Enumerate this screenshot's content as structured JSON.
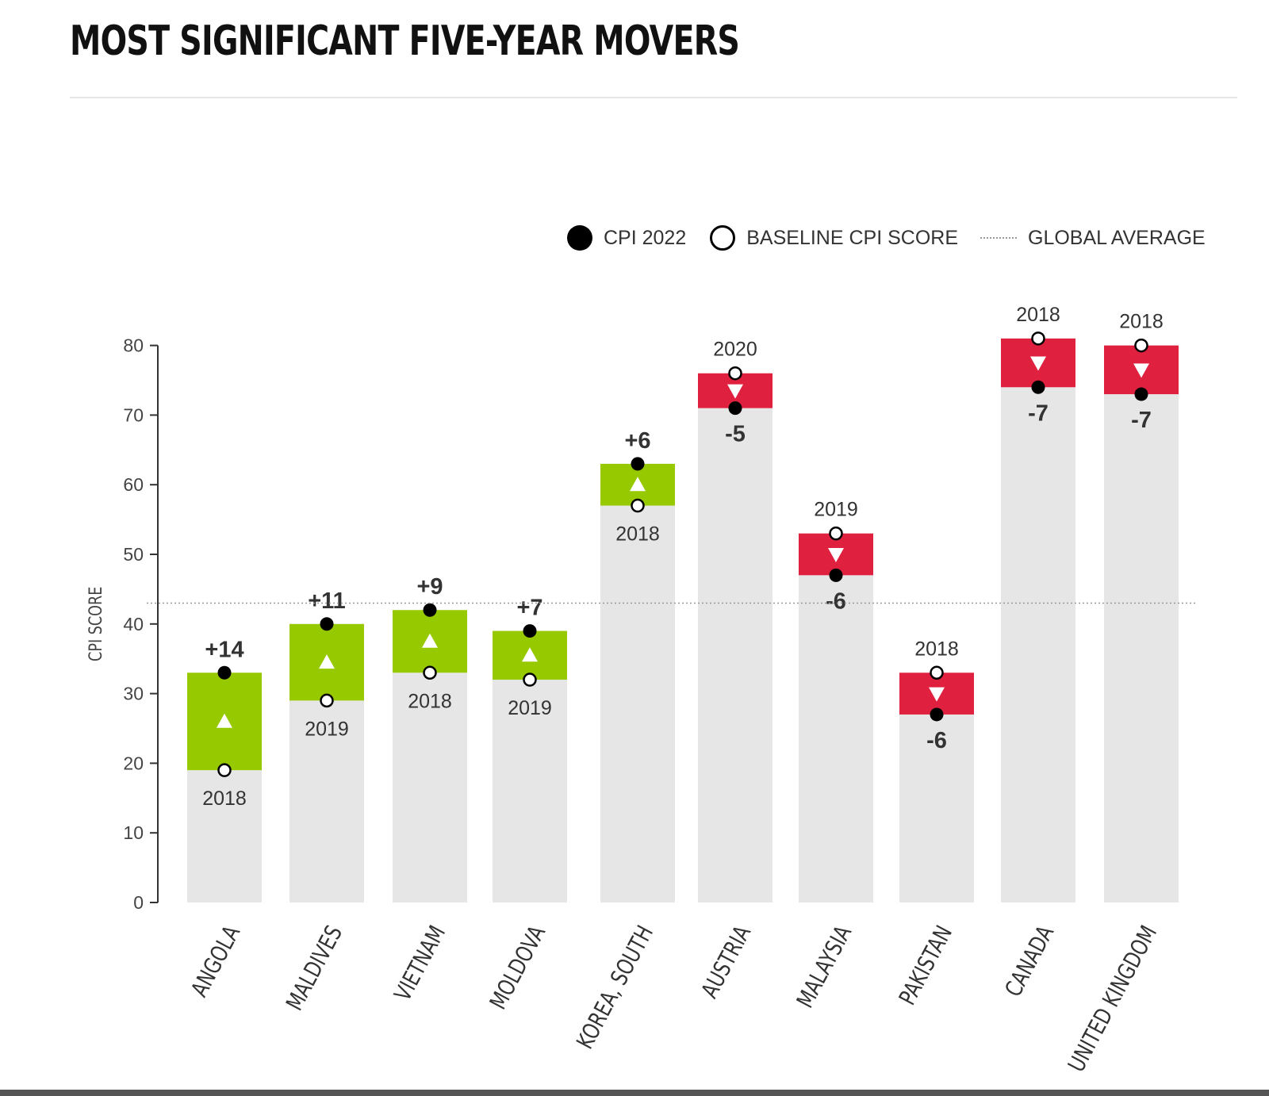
{
  "page": {
    "title": "MOST SIGNIFICANT FIVE-YEAR MOVERS"
  },
  "legend": {
    "cpi_2022_label": "CPI 2022",
    "baseline_label": "BASELINE CPI SCORE",
    "global_average_label": "GLOBAL AVERAGE"
  },
  "colors": {
    "increase": "#97c900",
    "decrease": "#e0203f",
    "bar_background": "#e6e6e6",
    "text": "#333333"
  },
  "chart_data": {
    "type": "bar",
    "title": "MOST SIGNIFICANT FIVE-YEAR MOVERS",
    "ylabel": "CPI SCORE",
    "xlabel": "",
    "ylim": [
      0,
      80
    ],
    "yticks": [
      0,
      10,
      20,
      30,
      40,
      50,
      60,
      70,
      80
    ],
    "global_average": 43,
    "categories": [
      "ANGOLA",
      "MALDIVES",
      "VIETNAM",
      "MOLDOVA",
      "KOREA, SOUTH",
      "AUSTRIA",
      "MALAYSIA",
      "PAKISTAN",
      "CANADA",
      "UNITED KINGDOM"
    ],
    "series": [
      {
        "name": "CPI 2022",
        "values": [
          33,
          40,
          42,
          39,
          63,
          71,
          47,
          27,
          74,
          73
        ]
      },
      {
        "name": "BASELINE CPI SCORE",
        "values": [
          19,
          29,
          33,
          32,
          57,
          76,
          53,
          33,
          81,
          80
        ]
      }
    ],
    "baseline_years": [
      "2018",
      "2019",
      "2018",
      "2019",
      "2018",
      "2020",
      "2019",
      "2018",
      "2018",
      "2018"
    ],
    "change_labels": [
      "+14",
      "+11",
      "+9",
      "+7",
      "+6",
      "-5",
      "-6",
      "-6",
      "-7",
      "-7"
    ]
  }
}
